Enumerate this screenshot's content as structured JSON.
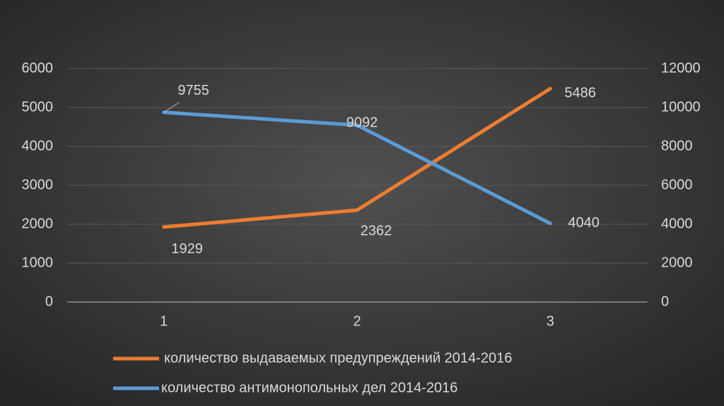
{
  "chart_data": {
    "type": "line",
    "categories": [
      "1",
      "2",
      "3"
    ],
    "series": [
      {
        "name": "количество выдаваемых предупреждений 2014-2016",
        "color": "#ed7d31",
        "values": [
          1929,
          2362,
          5486
        ]
      },
      {
        "name": "количество антимонопольных дел 2014-2016",
        "color": "#5b9bd5",
        "values": [
          9755,
          9092,
          4040
        ],
        "axis": "y2"
      }
    ],
    "ylim": [
      0,
      6000
    ],
    "yticks": [
      0,
      1000,
      2000,
      3000,
      4000,
      5000,
      6000
    ],
    "y2lim": [
      0,
      12000
    ],
    "y2ticks": [
      0,
      2000,
      4000,
      6000,
      8000,
      10000,
      12000
    ],
    "grid": true,
    "data_labels": true,
    "legend": "bottom"
  }
}
